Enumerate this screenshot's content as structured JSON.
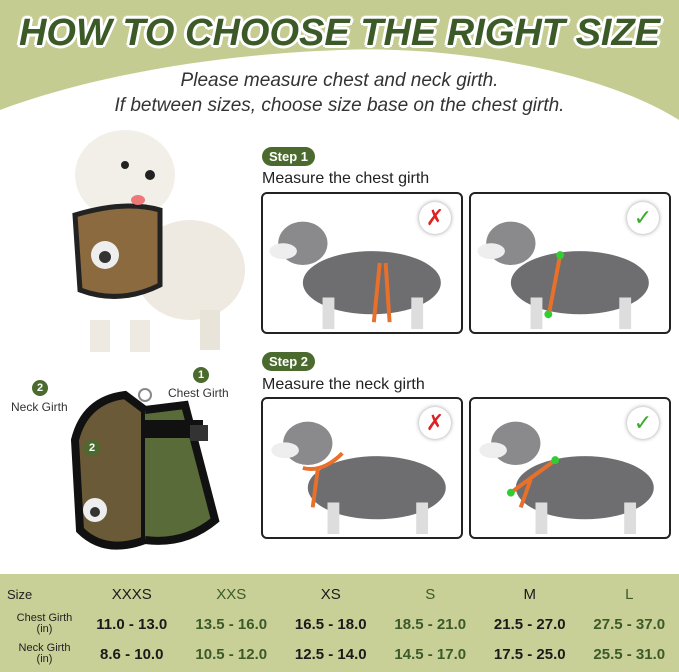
{
  "header": {
    "title": "HOW TO CHOOSE THE RIGHT SIZE",
    "subtitle_1": "Please measure chest and neck girth.",
    "subtitle_2": "If between sizes, choose size base on the chest girth."
  },
  "colors": {
    "background_green": "#c8cf97",
    "title_green": "#3c5a28",
    "strap_orange": "#e8702a",
    "wrong": "#d22",
    "right": "#3aaa2a"
  },
  "step1": {
    "badge": "Step 1",
    "text": "Measure the chest girth",
    "wrong_icon": "cross-icon",
    "right_icon": "check-icon"
  },
  "step2": {
    "badge": "Step 2",
    "text": "Measure the neck girth",
    "wrong_icon": "cross-icon",
    "right_icon": "check-icon"
  },
  "harness": {
    "neck_num": "2",
    "neck_label": "Neck Girth",
    "chest_num": "1",
    "chest_label": "Chest Girth",
    "inner_num": "2"
  },
  "table": {
    "size_label": "Size",
    "chest_label": "Chest Girth",
    "chest_unit": "(in)",
    "neck_label": "Neck Girth",
    "neck_unit": "(in)",
    "sizes": [
      "XXXS",
      "XXS",
      "XS",
      "S",
      "M",
      "L"
    ],
    "chest": [
      "11.0 - 13.0",
      "13.5 - 16.0",
      "16.5 - 18.0",
      "18.5 - 21.0",
      "21.5 - 27.0",
      "27.5 - 37.0"
    ],
    "neck": [
      "8.6 - 10.0",
      "10.5 - 12.0",
      "12.5 - 14.0",
      "14.5 - 17.0",
      "17.5 - 25.0",
      "25.5 - 31.0"
    ]
  }
}
